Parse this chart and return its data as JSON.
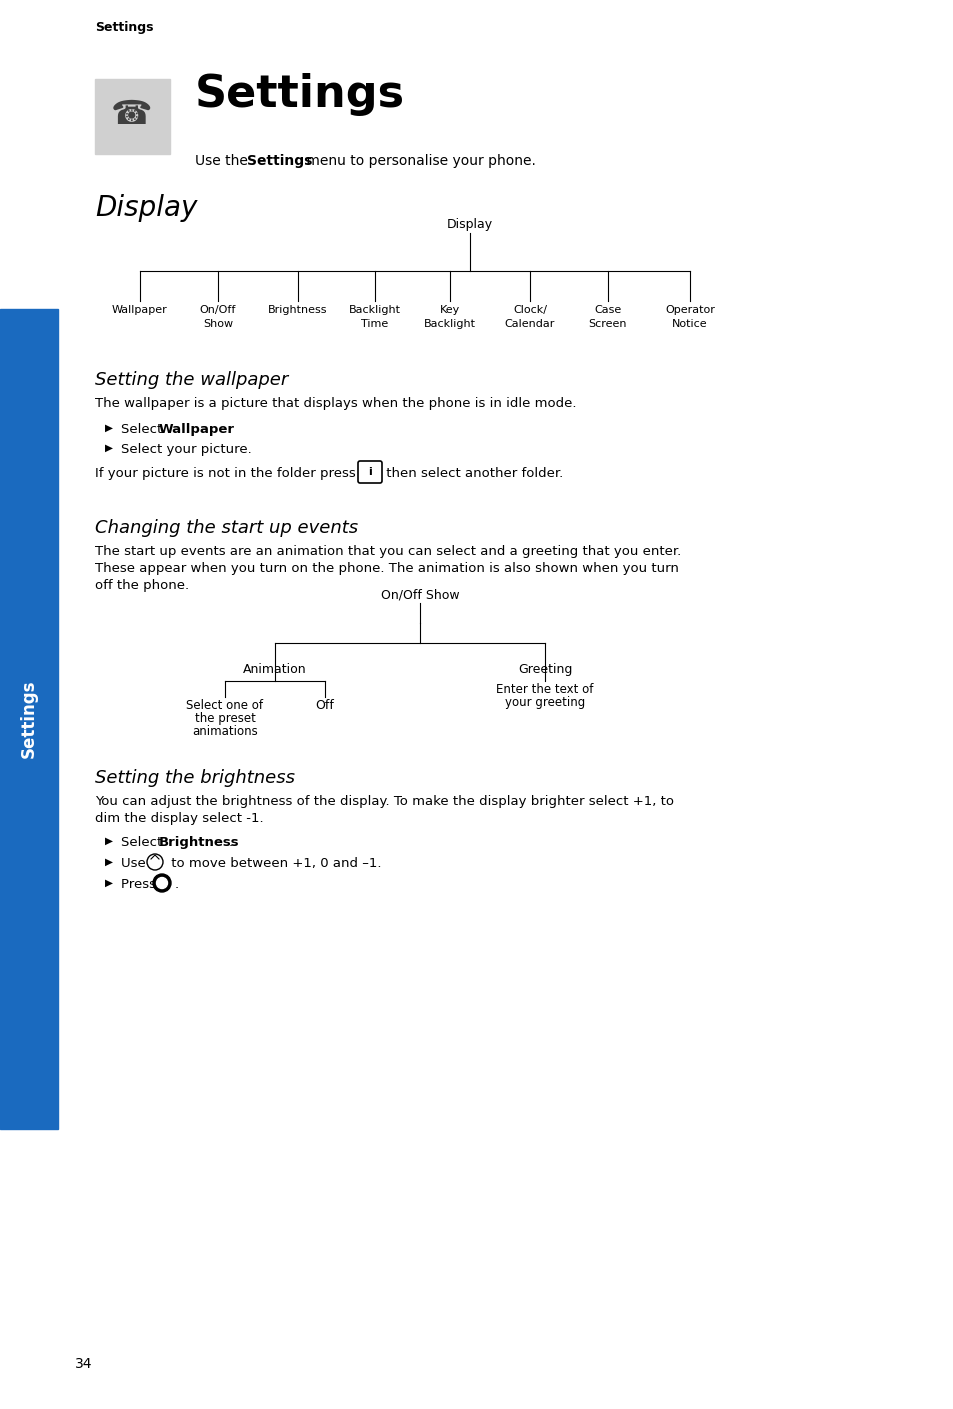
{
  "page_bg": "#ffffff",
  "sidebar_color": "#1a6abf",
  "sidebar_text": "Settings",
  "header_text": "Settings",
  "section1_title": "Display",
  "display_tree_root": "Display",
  "display_tree_children": [
    "Wallpaper",
    "On/Off\nShow",
    "Brightness",
    "Backlight\nTime",
    "Key\nBacklight",
    "Clock/\nCalendar",
    "Case\nScreen",
    "Operator\nNotice"
  ],
  "section2_title": "Setting the wallpaper",
  "wallpaper_para": "The wallpaper is a picture that displays when the phone is in idle mode.",
  "section3_title": "Changing the start up events",
  "startup_para1": "The start up events are an animation that you can select and a greeting that you enter.",
  "startup_para2": "These appear when you turn on the phone. The animation is also shown when you turn",
  "startup_para3": "off the phone.",
  "onoff_tree_root": "On/Off Show",
  "onoff_tree_l1": "Animation",
  "onoff_tree_l2": "Greeting",
  "onoff_tree_l1_l1": "Select one of\nthe preset\nanimations",
  "onoff_tree_l1_l2": "Off",
  "onoff_tree_l2_l1": "Enter the text of\nyour greeting",
  "section4_title": "Setting the brightness",
  "brightness_para1": "You can adjust the brightness of the display. To make the display brighter select +1, to",
  "brightness_para2": "dim the display select -1.",
  "page_number": "34",
  "header_label": "Settings"
}
